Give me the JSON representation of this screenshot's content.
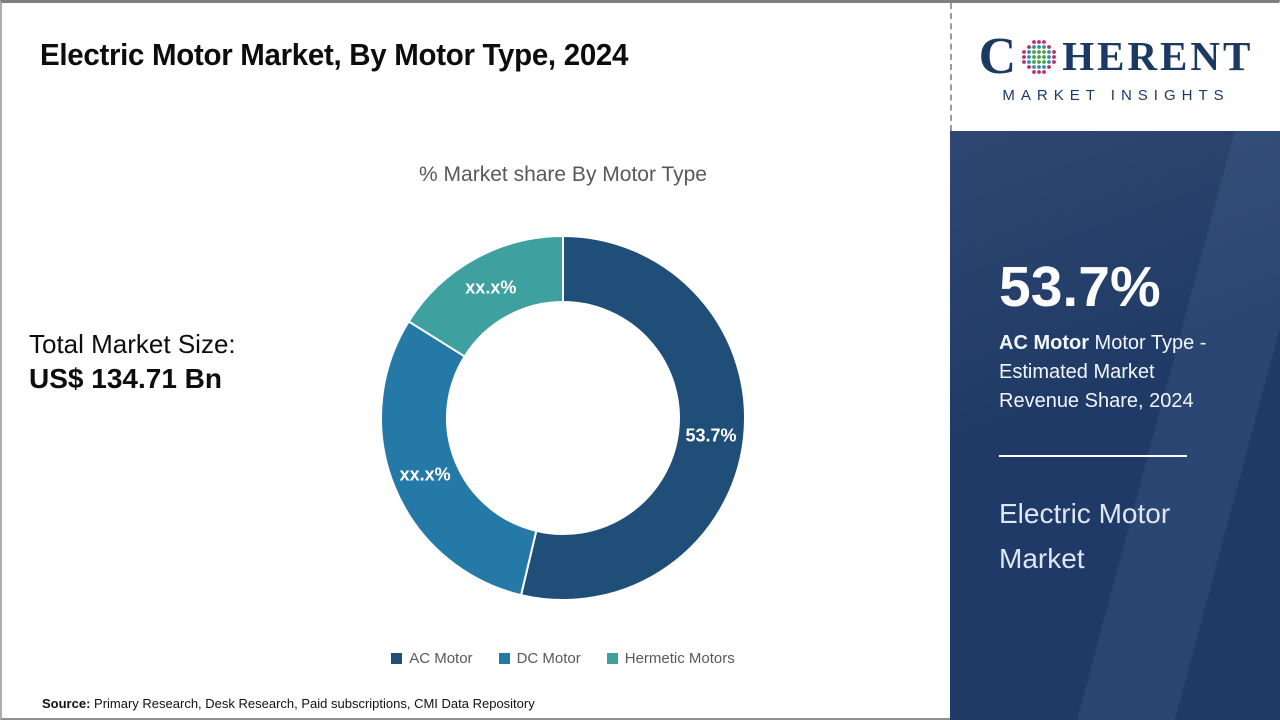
{
  "header": {
    "title": "Electric Motor Market, By Motor Type, 2024"
  },
  "logo": {
    "prefix": "C",
    "suffix": "HERENT",
    "subtitle": "MARKET INSIGHTS",
    "navy": "#1b3a63",
    "globe_colors": {
      "inner": "#44a347",
      "mid": "#2e8fa3",
      "outer": "#be2a70"
    }
  },
  "chart": {
    "title": "% Market share By Motor Type"
  },
  "chart_data": {
    "type": "pie",
    "donut": true,
    "title": "% Market share By Motor Type",
    "categories": [
      "AC Motor",
      "DC Motor",
      "Hermetic Motors"
    ],
    "values": [
      53.7,
      30.2,
      16.1
    ],
    "display_labels": [
      "53.7%",
      "xx.x%",
      "xx.x%"
    ],
    "colors": [
      "#1f4e79",
      "#2579a7",
      "#3fa0a0"
    ],
    "start_angle_deg": 0,
    "outer_radius": 182,
    "inner_radius": 116,
    "label_radius": 149,
    "legend_position": "bottom",
    "legend": [
      {
        "label": "AC Motor"
      },
      {
        "label": "DC Motor"
      },
      {
        "label": "Hermetic Motors"
      }
    ]
  },
  "market_size": {
    "label": "Total Market Size:",
    "value": "US$ 134.71 Bn"
  },
  "sidebar": {
    "stat_value": "53.7%",
    "stat_label_bold": "AC Motor",
    "stat_label_rest": " Motor Type - Estimated Market Revenue Share, 2024",
    "market_name": "Electric Motor Market"
  },
  "source": {
    "label": "Source:",
    "text": " Primary Research, Desk Research, Paid subscriptions, CMI Data Repository"
  }
}
